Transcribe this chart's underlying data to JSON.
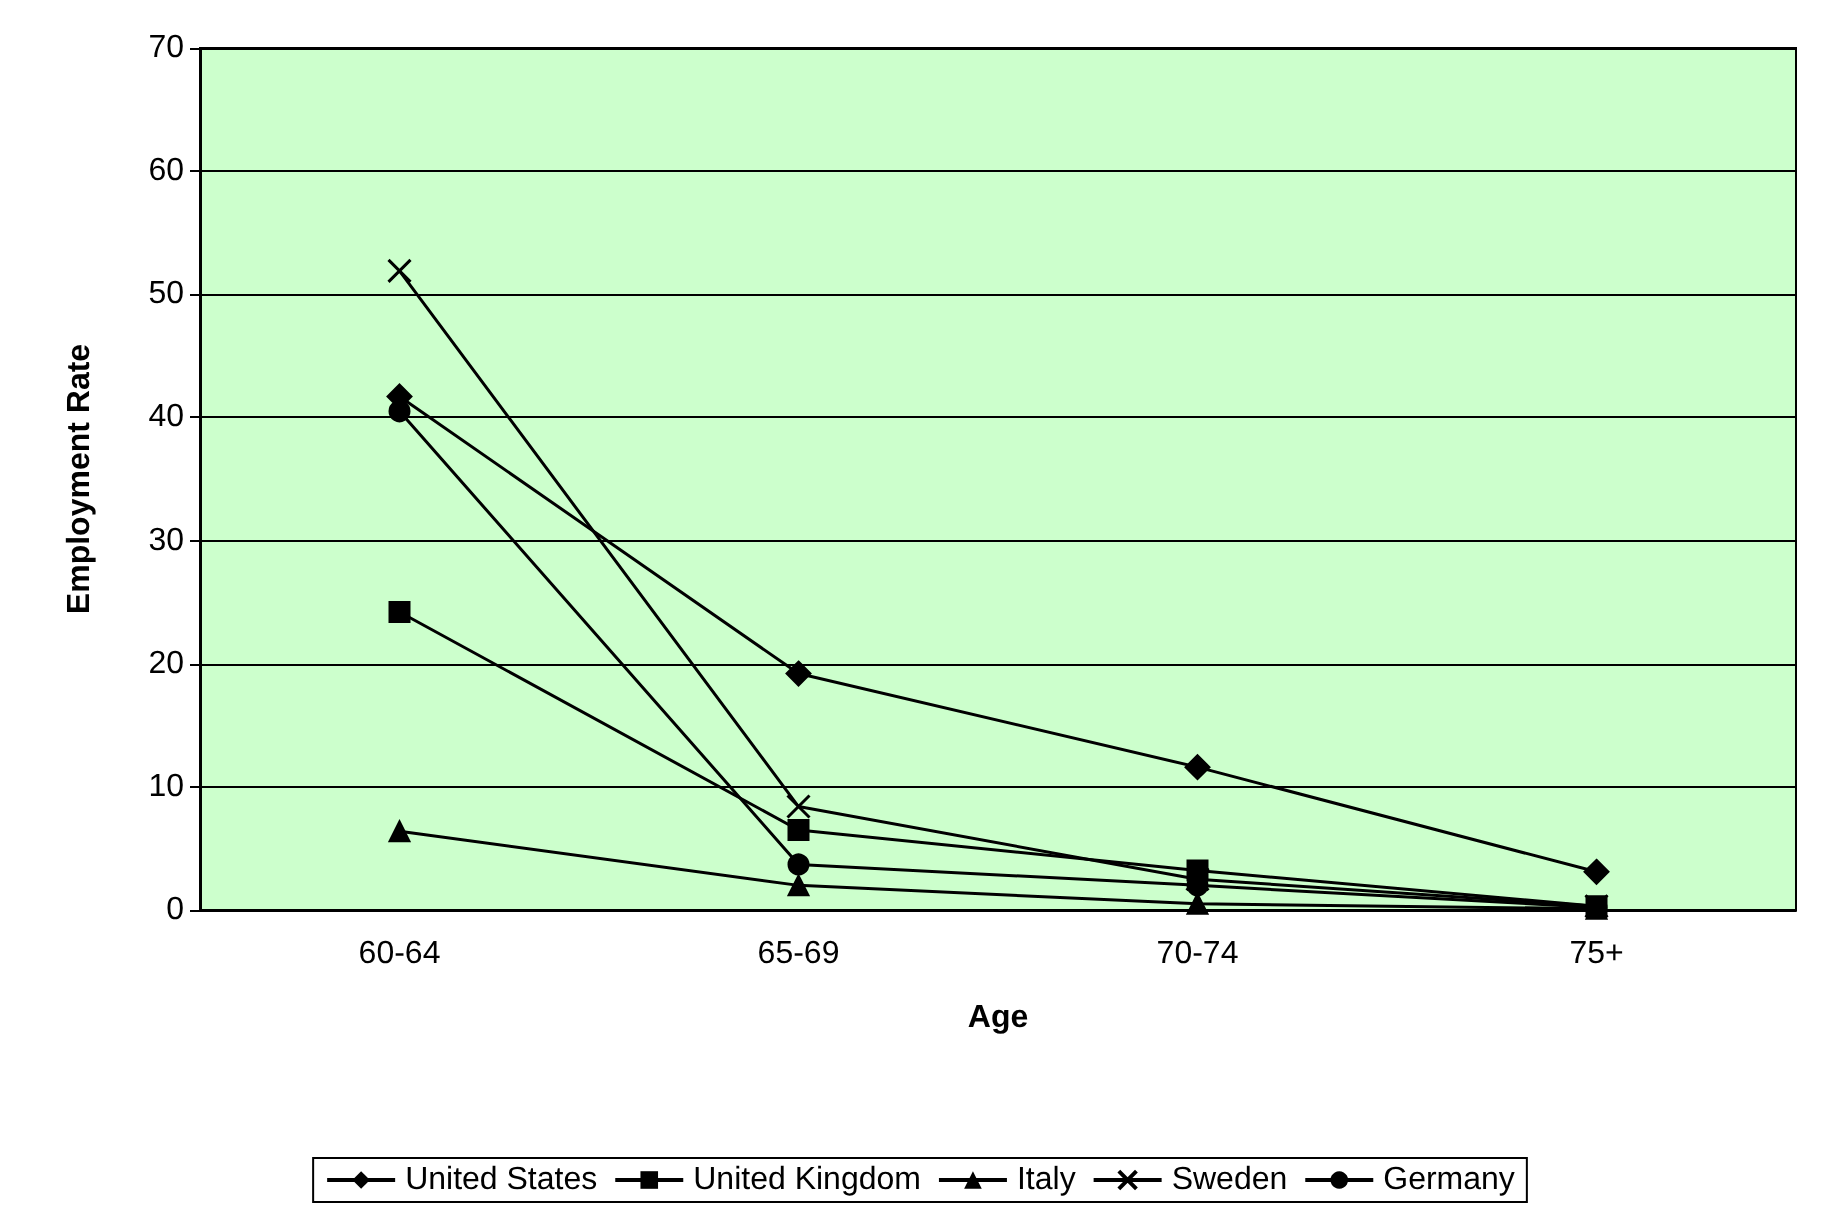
{
  "chart_data": {
    "type": "line",
    "xlabel": "Age",
    "ylabel": "Employment Rate",
    "categories": [
      "60-64",
      "65-69",
      "70-74",
      "75+"
    ],
    "ylim": [
      0,
      70
    ],
    "yticks": [
      0,
      10,
      20,
      30,
      40,
      50,
      60,
      70
    ],
    "grid": "y",
    "legend": "bottom",
    "series": [
      {
        "name": "United States",
        "color": "#000000",
        "marker": "diamond",
        "values": [
          41.7,
          19.2,
          11.6,
          3.1
        ]
      },
      {
        "name": "United Kingdom",
        "color": "#000000",
        "marker": "square",
        "values": [
          24.2,
          6.5,
          3.2,
          0.3
        ]
      },
      {
        "name": "Italy",
        "color": "#000000",
        "marker": "triangle",
        "values": [
          6.4,
          2.0,
          0.5,
          0.1
        ]
      },
      {
        "name": "Sweden",
        "color": "#000000",
        "marker": "cross",
        "values": [
          51.9,
          8.4,
          2.5,
          0.3
        ]
      },
      {
        "name": "Germany",
        "color": "#000000",
        "marker": "circle",
        "values": [
          40.5,
          3.7,
          2.0,
          0.2
        ]
      }
    ]
  }
}
